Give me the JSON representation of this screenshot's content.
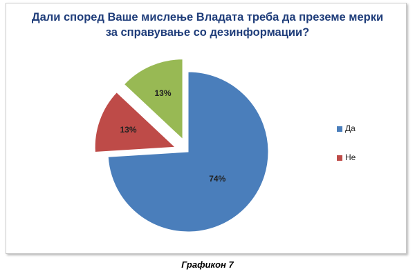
{
  "chart_data": {
    "type": "pie",
    "title": "Дали според Ваше мислење Владата треба да преземе мерки за справување со дезинформации?",
    "categories": [
      "Да",
      "Не",
      null
    ],
    "values": [
      74,
      13,
      13
    ],
    "value_labels": [
      "74%",
      "13%",
      "13%"
    ],
    "colors": [
      "#4a7ebb",
      "#be4b48",
      "#98b954"
    ],
    "legend": "right"
  },
  "caption": "Графикон 7"
}
